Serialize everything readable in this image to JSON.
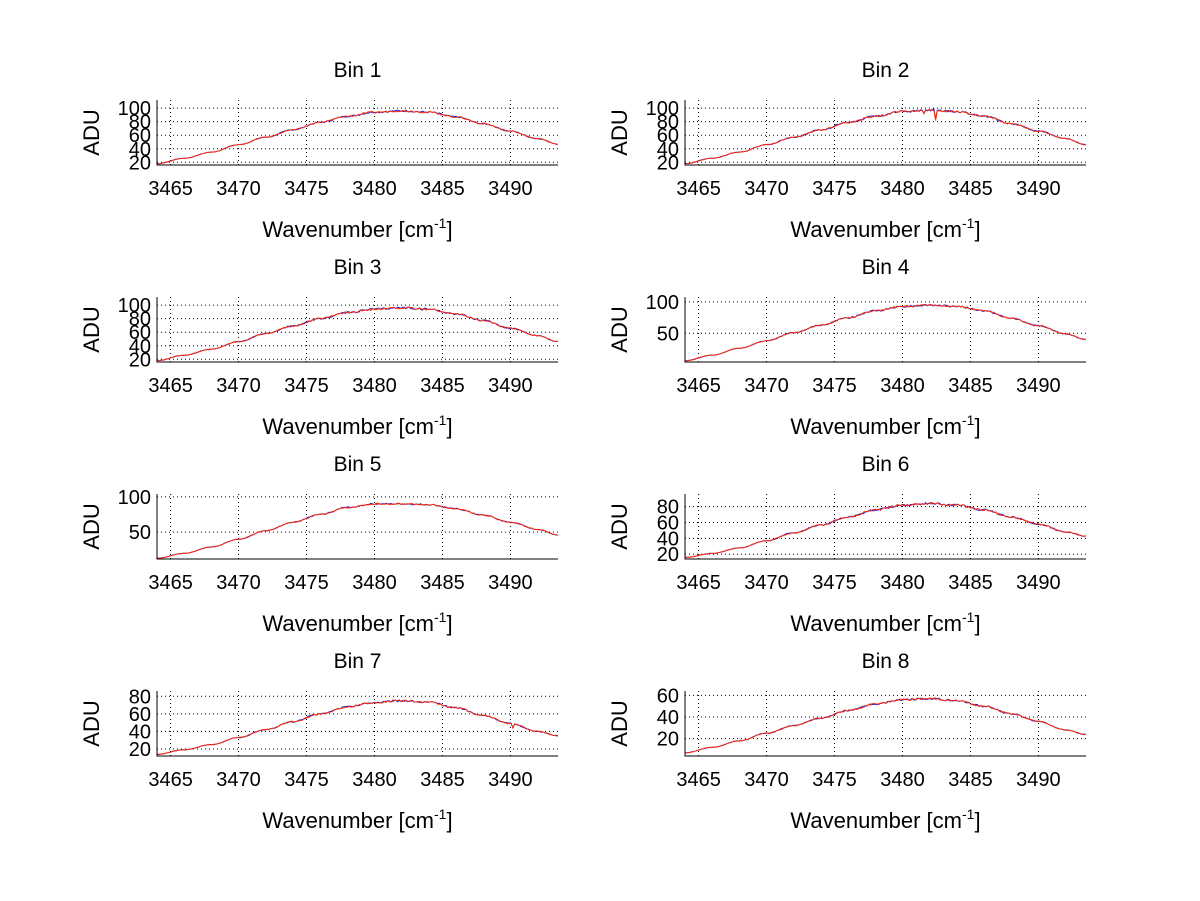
{
  "colors": {
    "blue_series": "#1f1fd8",
    "red_series": "#ff2a00",
    "grid": "#000000"
  },
  "chart_data": [
    {
      "type": "line",
      "title": "Bin 1",
      "xlabel": "Wavenumber [cm",
      "xlabel_sup": "-1",
      "xlabel_close": "]",
      "ylabel": "ADU",
      "xlim": [
        3464,
        3493.5
      ],
      "ylim": [
        16,
        112
      ],
      "yticks": [
        20,
        40,
        60,
        80,
        100
      ],
      "xticks": [
        3465,
        3470,
        3475,
        3480,
        3485,
        3490
      ],
      "ytick_labels": [
        "20",
        "40",
        "60",
        "80",
        "100"
      ],
      "xtick_labels": [
        "3465",
        "3470",
        "3475",
        "3480",
        "3485",
        "3490"
      ],
      "series": [
        {
          "name": "blue",
          "color": "#1f1fd8"
        },
        {
          "name": "red",
          "color": "#ff2a00"
        }
      ],
      "x": [
        3464,
        3466,
        3468,
        3470,
        3472,
        3474,
        3476,
        3478,
        3480,
        3482,
        3484,
        3486,
        3488,
        3490,
        3492,
        3493.5
      ],
      "values": [
        18,
        26,
        35,
        46,
        57,
        68,
        79,
        88,
        94,
        96,
        94,
        87,
        77,
        66,
        55,
        47
      ],
      "noise": 1.5,
      "dips": []
    },
    {
      "type": "line",
      "title": "Bin 2",
      "xlabel": "Wavenumber [cm",
      "xlabel_sup": "-1",
      "xlabel_close": "]",
      "ylabel": "ADU",
      "xlim": [
        3464,
        3493.5
      ],
      "ylim": [
        16,
        112
      ],
      "yticks": [
        20,
        40,
        60,
        80,
        100
      ],
      "xticks": [
        3465,
        3470,
        3475,
        3480,
        3485,
        3490
      ],
      "ytick_labels": [
        "20",
        "40",
        "60",
        "80",
        "100"
      ],
      "xtick_labels": [
        "3465",
        "3470",
        "3475",
        "3480",
        "3485",
        "3490"
      ],
      "series": [
        {
          "name": "blue",
          "color": "#1f1fd8"
        },
        {
          "name": "red",
          "color": "#ff2a00"
        }
      ],
      "x": [
        3464,
        3466,
        3468,
        3470,
        3472,
        3474,
        3476,
        3478,
        3480,
        3482,
        3484,
        3486,
        3488,
        3490,
        3492,
        3493.5
      ],
      "values": [
        18,
        26,
        35,
        46,
        57,
        68,
        79,
        88,
        95,
        97,
        95,
        88,
        77,
        66,
        55,
        46
      ],
      "noise": 1.8,
      "dips": [
        [
          3482.4,
          14
        ],
        [
          3481.6,
          5
        ]
      ]
    },
    {
      "type": "line",
      "title": "Bin 3",
      "xlabel": "Wavenumber [cm",
      "xlabel_sup": "-1",
      "xlabel_close": "]",
      "ylabel": "ADU",
      "xlim": [
        3464,
        3493.5
      ],
      "ylim": [
        16,
        112
      ],
      "yticks": [
        20,
        40,
        60,
        80,
        100
      ],
      "xticks": [
        3465,
        3470,
        3475,
        3480,
        3485,
        3490
      ],
      "ytick_labels": [
        "20",
        "40",
        "60",
        "80",
        "100"
      ],
      "xtick_labels": [
        "3465",
        "3470",
        "3475",
        "3480",
        "3485",
        "3490"
      ],
      "series": [
        {
          "name": "blue",
          "color": "#1f1fd8"
        },
        {
          "name": "red",
          "color": "#ff2a00"
        }
      ],
      "x": [
        3464,
        3466,
        3468,
        3470,
        3472,
        3474,
        3476,
        3478,
        3480,
        3482,
        3484,
        3486,
        3488,
        3490,
        3492,
        3493.5
      ],
      "values": [
        18,
        26,
        35,
        46,
        58,
        69,
        80,
        89,
        94,
        96,
        94,
        87,
        77,
        66,
        55,
        46
      ],
      "noise": 1.8,
      "dips": []
    },
    {
      "type": "line",
      "title": "Bin 4",
      "xlabel": "Wavenumber [cm",
      "xlabel_sup": "-1",
      "xlabel_close": "]",
      "ylabel": "ADU",
      "xlim": [
        3464,
        3493.5
      ],
      "ylim": [
        4,
        108
      ],
      "yticks": [
        50,
        100
      ],
      "xticks": [
        3465,
        3470,
        3475,
        3480,
        3485,
        3490
      ],
      "ytick_labels": [
        "50",
        "100"
      ],
      "xtick_labels": [
        "3465",
        "3470",
        "3475",
        "3480",
        "3485",
        "3490"
      ],
      "series": [
        {
          "name": "blue",
          "color": "#1f1fd8"
        },
        {
          "name": "red",
          "color": "#ff2a00"
        }
      ],
      "x": [
        3464,
        3466,
        3468,
        3470,
        3472,
        3474,
        3476,
        3478,
        3480,
        3482,
        3484,
        3486,
        3488,
        3490,
        3492,
        3493.5
      ],
      "values": [
        6,
        15,
        26,
        38,
        51,
        63,
        75,
        86,
        93,
        95,
        93,
        86,
        74,
        62,
        49,
        40
      ],
      "noise": 1.6,
      "dips": []
    },
    {
      "type": "line",
      "title": "Bin 5",
      "xlabel": "Wavenumber [cm",
      "xlabel_sup": "-1",
      "xlabel_close": "]",
      "ylabel": "ADU",
      "xlim": [
        3464,
        3493.5
      ],
      "ylim": [
        12,
        104
      ],
      "yticks": [
        50,
        100
      ],
      "xticks": [
        3465,
        3470,
        3475,
        3480,
        3485,
        3490
      ],
      "ytick_labels": [
        "50",
        "100"
      ],
      "xtick_labels": [
        "3465",
        "3470",
        "3475",
        "3480",
        "3485",
        "3490"
      ],
      "series": [
        {
          "name": "blue",
          "color": "#1f1fd8"
        },
        {
          "name": "red",
          "color": "#ff2a00"
        }
      ],
      "x": [
        3464,
        3466,
        3468,
        3470,
        3472,
        3474,
        3476,
        3478,
        3480,
        3482,
        3484,
        3486,
        3488,
        3490,
        3492,
        3493.5
      ],
      "values": [
        13,
        20,
        29,
        40,
        52,
        64,
        75,
        85,
        90,
        90,
        89,
        83,
        74,
        64,
        54,
        46
      ],
      "noise": 1.2,
      "dips": []
    },
    {
      "type": "line",
      "title": "Bin 6",
      "xlabel": "Wavenumber [cm",
      "xlabel_sup": "-1",
      "xlabel_close": "]",
      "ylabel": "ADU",
      "xlim": [
        3464,
        3493.5
      ],
      "ylim": [
        14,
        96
      ],
      "yticks": [
        20,
        40,
        60,
        80
      ],
      "xticks": [
        3465,
        3470,
        3475,
        3480,
        3485,
        3490
      ],
      "ytick_labels": [
        "20",
        "40",
        "60",
        "80"
      ],
      "xtick_labels": [
        "3465",
        "3470",
        "3475",
        "3480",
        "3485",
        "3490"
      ],
      "series": [
        {
          "name": "blue",
          "color": "#1f1fd8"
        },
        {
          "name": "red",
          "color": "#ff2a00"
        }
      ],
      "x": [
        3464,
        3466,
        3468,
        3470,
        3472,
        3474,
        3476,
        3478,
        3480,
        3482,
        3484,
        3486,
        3488,
        3490,
        3492,
        3493.5
      ],
      "values": [
        16,
        21,
        28,
        37,
        47,
        57,
        67,
        76,
        82,
        84,
        82,
        76,
        67,
        58,
        48,
        43
      ],
      "noise": 1.6,
      "dips": []
    },
    {
      "type": "line",
      "title": "Bin 7",
      "xlabel": "Wavenumber [cm",
      "xlabel_sup": "-1",
      "xlabel_close": "]",
      "ylabel": "ADU",
      "xlim": [
        3464,
        3493.5
      ],
      "ylim": [
        12,
        86
      ],
      "yticks": [
        20,
        40,
        60,
        80
      ],
      "xticks": [
        3465,
        3470,
        3475,
        3480,
        3485,
        3490
      ],
      "ytick_labels": [
        "20",
        "40",
        "60",
        "80"
      ],
      "xtick_labels": [
        "3465",
        "3470",
        "3475",
        "3480",
        "3485",
        "3490"
      ],
      "series": [
        {
          "name": "blue",
          "color": "#1f1fd8"
        },
        {
          "name": "red",
          "color": "#ff2a00"
        }
      ],
      "x": [
        3464,
        3466,
        3468,
        3470,
        3472,
        3474,
        3476,
        3478,
        3480,
        3482,
        3484,
        3486,
        3488,
        3490,
        3492,
        3493.5
      ],
      "values": [
        14,
        19,
        25,
        33,
        42,
        51,
        60,
        68,
        73,
        75,
        73,
        67,
        58,
        49,
        40,
        35
      ],
      "noise": 1.3,
      "dips": [
        [
          3490.2,
          5
        ]
      ]
    },
    {
      "type": "line",
      "title": "Bin 8",
      "xlabel": "Wavenumber [cm",
      "xlabel_sup": "-1",
      "xlabel_close": "]",
      "ylabel": "ADU",
      "xlim": [
        3464,
        3493.5
      ],
      "ylim": [
        4,
        64
      ],
      "yticks": [
        20,
        40,
        60
      ],
      "xticks": [
        3465,
        3470,
        3475,
        3480,
        3485,
        3490
      ],
      "ytick_labels": [
        "20",
        "40",
        "60"
      ],
      "xtick_labels": [
        "3465",
        "3470",
        "3475",
        "3480",
        "3485",
        "3490"
      ],
      "series": [
        {
          "name": "blue",
          "color": "#1f1fd8"
        },
        {
          "name": "red",
          "color": "#ff2a00"
        }
      ],
      "x": [
        3464,
        3466,
        3468,
        3470,
        3472,
        3474,
        3476,
        3478,
        3480,
        3482,
        3484,
        3486,
        3488,
        3490,
        3492,
        3493.5
      ],
      "values": [
        7,
        12,
        18,
        25,
        32,
        39,
        46,
        52,
        56,
        57,
        55,
        50,
        43,
        36,
        28,
        24
      ],
      "noise": 1.0,
      "dips": []
    }
  ]
}
